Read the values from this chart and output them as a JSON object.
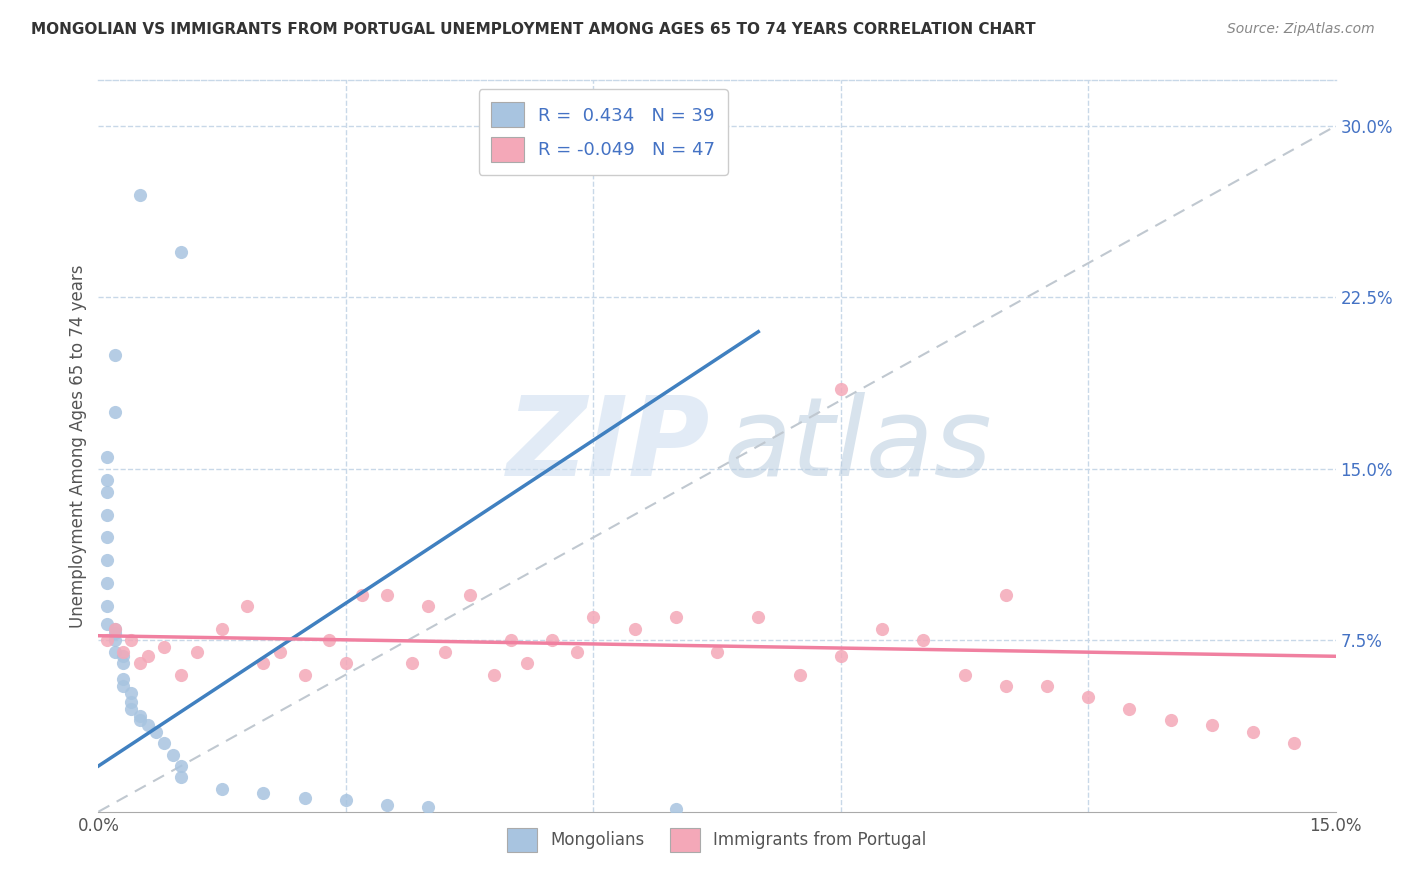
{
  "title": "MONGOLIAN VS IMMIGRANTS FROM PORTUGAL UNEMPLOYMENT AMONG AGES 65 TO 74 YEARS CORRELATION CHART",
  "source": "Source: ZipAtlas.com",
  "ylabel": "Unemployment Among Ages 65 to 74 years",
  "xlim": [
    0,
    0.15
  ],
  "ylim": [
    0,
    0.32
  ],
  "xtick_pos": [
    0.0,
    0.03,
    0.06,
    0.09,
    0.12,
    0.15
  ],
  "xticklabels": [
    "0.0%",
    "",
    "",
    "",
    "",
    "15.0%"
  ],
  "ytick_pos": [
    0.0,
    0.075,
    0.15,
    0.225,
    0.3
  ],
  "yticklabels_right": [
    "",
    "7.5%",
    "15.0%",
    "22.5%",
    "30.0%"
  ],
  "mongolian_R": 0.434,
  "mongolian_N": 39,
  "portugal_R": -0.049,
  "portugal_N": 47,
  "mongolian_color": "#a8c4e0",
  "portugal_color": "#f4a8b8",
  "mongolian_line_color": "#4080c0",
  "portugal_line_color": "#f080a0",
  "diag_line_color": "#c0c8d0",
  "background_color": "#ffffff",
  "mong_x": [
    0.005,
    0.01,
    0.002,
    0.002,
    0.001,
    0.001,
    0.001,
    0.001,
    0.001,
    0.001,
    0.001,
    0.001,
    0.001,
    0.002,
    0.002,
    0.002,
    0.002,
    0.003,
    0.003,
    0.003,
    0.003,
    0.004,
    0.004,
    0.004,
    0.005,
    0.005,
    0.006,
    0.007,
    0.008,
    0.009,
    0.01,
    0.01,
    0.015,
    0.02,
    0.025,
    0.03,
    0.035,
    0.04,
    0.07
  ],
  "mong_y": [
    0.27,
    0.245,
    0.2,
    0.175,
    0.155,
    0.145,
    0.14,
    0.13,
    0.12,
    0.11,
    0.1,
    0.09,
    0.082,
    0.08,
    0.078,
    0.075,
    0.07,
    0.068,
    0.065,
    0.058,
    0.055,
    0.052,
    0.048,
    0.045,
    0.042,
    0.04,
    0.038,
    0.035,
    0.03,
    0.025,
    0.02,
    0.015,
    0.01,
    0.008,
    0.006,
    0.005,
    0.003,
    0.002,
    0.001
  ],
  "port_x": [
    0.001,
    0.002,
    0.003,
    0.004,
    0.005,
    0.006,
    0.008,
    0.01,
    0.012,
    0.015,
    0.018,
    0.02,
    0.022,
    0.025,
    0.028,
    0.03,
    0.032,
    0.035,
    0.038,
    0.04,
    0.042,
    0.045,
    0.048,
    0.05,
    0.052,
    0.055,
    0.058,
    0.06,
    0.065,
    0.07,
    0.075,
    0.08,
    0.085,
    0.09,
    0.095,
    0.1,
    0.105,
    0.11,
    0.115,
    0.12,
    0.125,
    0.13,
    0.135,
    0.11,
    0.09,
    0.14,
    0.145
  ],
  "port_y": [
    0.075,
    0.08,
    0.07,
    0.075,
    0.065,
    0.068,
    0.072,
    0.06,
    0.07,
    0.08,
    0.09,
    0.065,
    0.07,
    0.06,
    0.075,
    0.065,
    0.095,
    0.095,
    0.065,
    0.09,
    0.07,
    0.095,
    0.06,
    0.075,
    0.065,
    0.075,
    0.07,
    0.085,
    0.08,
    0.085,
    0.07,
    0.085,
    0.06,
    0.068,
    0.08,
    0.075,
    0.06,
    0.055,
    0.055,
    0.05,
    0.045,
    0.04,
    0.038,
    0.095,
    0.185,
    0.035,
    0.03
  ],
  "mong_line_x": [
    0.0,
    0.08
  ],
  "mong_line_y": [
    0.02,
    0.21
  ],
  "port_line_x": [
    0.0,
    0.15
  ],
  "port_line_y": [
    0.077,
    0.068
  ],
  "diag_line_x": [
    0.0,
    0.15
  ],
  "diag_line_y": [
    0.0,
    0.3
  ]
}
